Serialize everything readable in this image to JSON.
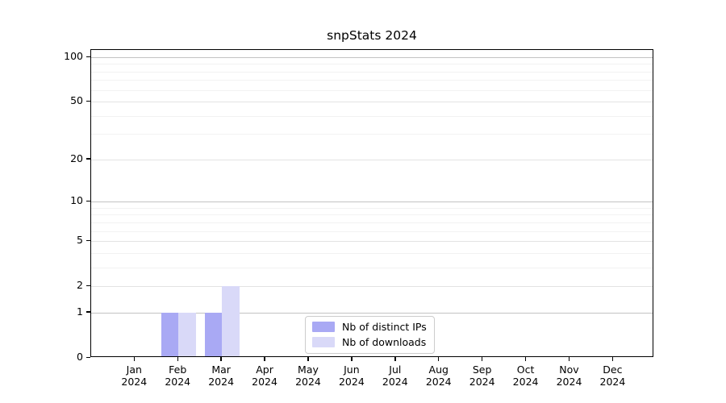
{
  "chart_data": {
    "type": "bar",
    "title": "snpStats 2024",
    "categories": [
      "Jan",
      "Feb",
      "Mar",
      "Apr",
      "May",
      "Jun",
      "Jul",
      "Aug",
      "Sep",
      "Oct",
      "Nov",
      "Dec"
    ],
    "year": "2024",
    "series": [
      {
        "name": "Nb of distinct IPs",
        "color": "#a9a9f4",
        "values": [
          0,
          1,
          1,
          0,
          0,
          0,
          0,
          0,
          0,
          0,
          0,
          0
        ]
      },
      {
        "name": "Nb of downloads",
        "color": "#d9d9f8",
        "values": [
          0,
          1,
          2,
          0,
          0,
          0,
          0,
          0,
          0,
          0,
          0,
          0
        ]
      }
    ],
    "yaxis": {
      "scale": "log1p",
      "tick_values": [
        100,
        50,
        20,
        10,
        5,
        2,
        1,
        0
      ],
      "tick_labels": [
        "100",
        "50",
        "20",
        "10",
        "5",
        "2",
        "1",
        "0"
      ],
      "minor_tick_values": [
        3,
        4,
        6,
        7,
        8,
        9,
        30,
        40,
        60,
        70,
        80,
        90
      ],
      "ylim": [
        0,
        113
      ]
    },
    "legend": {
      "position": "lower center",
      "entries": [
        "Nb of distinct IPs",
        "Nb of downloads"
      ]
    },
    "grid": true,
    "colors": {
      "grid_major": "#c3c3c3",
      "grid_mid": "#e3e3e3",
      "grid_minor": "#f2f2f2",
      "spine": "#000000",
      "background": "#ffffff"
    }
  }
}
